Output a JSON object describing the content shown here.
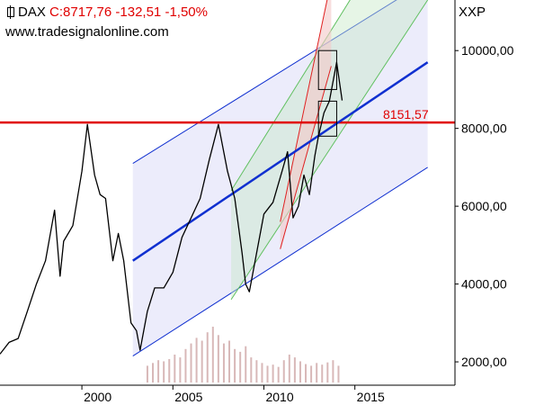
{
  "header": {
    "symbol": "DAX",
    "quote": "C:8717,76 -132,51 -1,50%",
    "website": "www.tradesignalonline.com",
    "axis_unit": "XXP"
  },
  "colors": {
    "support_line": "#e00000",
    "trend_line": "#1030d0",
    "channel_fill": "#dcdcf8",
    "green_channel": "#60c060",
    "red_channel": "#e02020",
    "price": "#000000",
    "volume": "#d8b8b8"
  },
  "chart_data": {
    "type": "line",
    "title": "",
    "xlabel": "",
    "ylabel": "",
    "xlim": [
      1995.5,
      2020.5
    ],
    "ylim": [
      1400,
      11300
    ],
    "x_ticks": [
      2000,
      2005,
      2010,
      2015
    ],
    "x_tick_labels": [
      "2000",
      "2005",
      "2010",
      "2015"
    ],
    "y_ticks": [
      2000,
      4000,
      6000,
      8000,
      10000
    ],
    "y_tick_labels": [
      "2000,00",
      "4000,00",
      "6000,00",
      "8000,00",
      "10000,00"
    ],
    "grid": false,
    "series": [
      {
        "x": [
          1995.5,
          1996.0,
          1996.5,
          1997.0,
          1997.5,
          1998.0,
          1998.5,
          1998.8,
          1999.0,
          1999.5,
          2000.0,
          2000.3,
          2000.7,
          2001.0,
          2001.3,
          2001.7,
          2002.0,
          2002.3,
          2002.7,
          2003.0,
          2003.2,
          2003.6,
          2004.0,
          2004.5,
          2005.0,
          2005.5,
          2006.0,
          2006.5,
          2007.0,
          2007.5,
          2008.0,
          2008.4,
          2008.8,
          2009.0,
          2009.2,
          2009.6,
          2010.0,
          2010.5,
          2011.0,
          2011.3,
          2011.6,
          2011.9,
          2012.2,
          2012.5,
          2012.8,
          2013.0,
          2013.3,
          2013.6,
          2014.0,
          2014.3
        ],
        "y": [
          2200,
          2500,
          2600,
          3300,
          4000,
          4600,
          5900,
          4200,
          5100,
          5500,
          6900,
          8100,
          6800,
          6300,
          6200,
          4600,
          5300,
          4600,
          3000,
          2800,
          2300,
          3300,
          3900,
          3900,
          4300,
          5200,
          5700,
          6200,
          7200,
          8100,
          6900,
          6200,
          4800,
          4000,
          3800,
          4800,
          5800,
          6100,
          6900,
          7400,
          5700,
          6000,
          6800,
          6300,
          7300,
          7800,
          8400,
          8700,
          9700,
          8718
        ]
      }
    ],
    "volume": {
      "x": [
        2003.6,
        2003.9,
        2004.2,
        2004.5,
        2004.8,
        2005.1,
        2005.4,
        2005.7,
        2006.0,
        2006.3,
        2006.6,
        2006.9,
        2007.2,
        2007.5,
        2007.8,
        2008.1,
        2008.4,
        2008.7,
        2009.0,
        2009.3,
        2009.6,
        2009.9,
        2010.2,
        2010.5,
        2010.8,
        2011.1,
        2011.4,
        2011.7,
        2012.0,
        2012.3,
        2012.6,
        2012.9,
        2013.2,
        2013.5,
        2013.8,
        2014.1
      ],
      "values": [
        0.3,
        0.35,
        0.4,
        0.38,
        0.42,
        0.5,
        0.45,
        0.6,
        0.7,
        0.8,
        0.75,
        0.9,
        1.0,
        0.85,
        0.7,
        0.75,
        0.6,
        0.55,
        0.65,
        0.45,
        0.4,
        0.35,
        0.3,
        0.32,
        0.28,
        0.4,
        0.5,
        0.45,
        0.38,
        0.33,
        0.3,
        0.35,
        0.32,
        0.36,
        0.4,
        0.3
      ]
    },
    "horizontal_lines": [
      {
        "label": "8151,57",
        "y": 8151.57
      }
    ],
    "trend_lines": [
      {
        "name": "",
        "x": [
          2002.8,
          2019.0
        ],
        "y": [
          4600,
          9700
        ]
      }
    ],
    "channels": [
      {
        "kind": "blue",
        "bottom": [
          [
            2002.8,
            2150
          ],
          [
            2019.0,
            7000
          ]
        ],
        "top": [
          [
            2002.8,
            7100
          ],
          [
            2019.0,
            11800
          ]
        ]
      },
      {
        "kind": "green",
        "bottom": [
          [
            2008.2,
            3600
          ],
          [
            2019.0,
            11300
          ]
        ],
        "top": [
          [
            2008.2,
            6400
          ],
          [
            2019.0,
            14500
          ]
        ]
      },
      {
        "kind": "red",
        "bottom": [
          [
            2010.9,
            4900
          ],
          [
            2013.7,
            9600
          ]
        ],
        "top": [
          [
            2010.9,
            5600
          ],
          [
            2013.7,
            11800
          ]
        ]
      }
    ],
    "boxes": [
      {
        "x": [
          2013.0,
          2014.0
        ],
        "y": [
          9000,
          10000
        ]
      },
      {
        "x": [
          2013.0,
          2014.0
        ],
        "y": [
          7800,
          8700
        ]
      }
    ]
  }
}
